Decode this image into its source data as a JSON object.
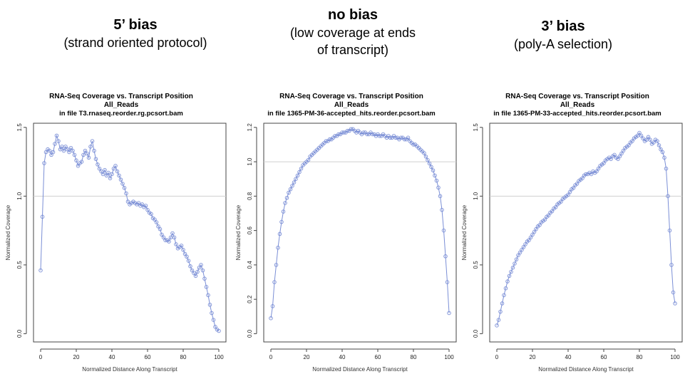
{
  "headings": [
    {
      "title": "5’ bias",
      "subtitle": "(strand oriented protocol)"
    },
    {
      "title": "no bias",
      "subtitle": "(low coverage at ends\nof  transcript)"
    },
    {
      "title": "3’ bias",
      "subtitle": "(poly-A selection)"
    }
  ],
  "chart_data": [
    {
      "type": "line",
      "title": "RNA-Seq Coverage vs. Transcript Position",
      "subtitle": "All_Reads",
      "file_label": "in file T3.rnaseq.reorder.rg.pcsort.bam",
      "xlabel": "Normalized Distance Along Transcript",
      "ylabel": "Normalized Coverage",
      "xlim": [
        0,
        100
      ],
      "ylim": [
        0,
        1.5
      ],
      "xticks": [
        0,
        20,
        40,
        60,
        80,
        100
      ],
      "yticks": [
        0.0,
        0.5,
        1.0,
        1.5
      ],
      "reference_line": 1.0,
      "marker": "circle",
      "color": "#7b8fd6",
      "series": [
        {
          "x": [
            0,
            1,
            2,
            3,
            4,
            5,
            6,
            7,
            8,
            9,
            10,
            11,
            12,
            13,
            14,
            15,
            16,
            17,
            18,
            19,
            20,
            21,
            22,
            23,
            24,
            25,
            26,
            27,
            28,
            29,
            30,
            31,
            32,
            33,
            34,
            35,
            36,
            37,
            38,
            39,
            40,
            41,
            42,
            43,
            44,
            45,
            46,
            47,
            48,
            49,
            50,
            51,
            52,
            53,
            54,
            55,
            56,
            57,
            58,
            59,
            60,
            61,
            62,
            63,
            64,
            65,
            66,
            67,
            68,
            69,
            70,
            71,
            72,
            73,
            74,
            75,
            76,
            77,
            78,
            79,
            80,
            81,
            82,
            83,
            84,
            85,
            86,
            87,
            88,
            89,
            90,
            91,
            92,
            93,
            94,
            95,
            96,
            97,
            98,
            99,
            100
          ],
          "y": [
            0.46,
            0.85,
            1.24,
            1.32,
            1.34,
            1.33,
            1.3,
            1.32,
            1.38,
            1.44,
            1.4,
            1.34,
            1.36,
            1.33,
            1.36,
            1.34,
            1.32,
            1.35,
            1.33,
            1.3,
            1.26,
            1.22,
            1.24,
            1.25,
            1.3,
            1.33,
            1.31,
            1.28,
            1.36,
            1.4,
            1.33,
            1.27,
            1.23,
            1.2,
            1.18,
            1.16,
            1.19,
            1.15,
            1.17,
            1.13,
            1.16,
            1.2,
            1.22,
            1.18,
            1.15,
            1.12,
            1.09,
            1.06,
            1.02,
            0.96,
            0.94,
            0.95,
            0.96,
            0.95,
            0.94,
            0.95,
            0.93,
            0.94,
            0.92,
            0.93,
            0.9,
            0.88,
            0.87,
            0.84,
            0.83,
            0.81,
            0.78,
            0.76,
            0.72,
            0.7,
            0.68,
            0.68,
            0.67,
            0.7,
            0.73,
            0.7,
            0.65,
            0.62,
            0.63,
            0.64,
            0.61,
            0.58,
            0.56,
            0.53,
            0.49,
            0.46,
            0.44,
            0.42,
            0.45,
            0.48,
            0.5,
            0.46,
            0.4,
            0.34,
            0.28,
            0.21,
            0.15,
            0.1,
            0.05,
            0.03,
            0.02
          ]
        }
      ]
    },
    {
      "type": "line",
      "title": "RNA-Seq Coverage vs. Transcript Position",
      "subtitle": "All_Reads",
      "file_label": "in file 1365-PM-36-accepted_hits.reorder.pcsort.bam",
      "xlabel": "Normalized Distance Along Transcript",
      "ylabel": "Normalized Coverage",
      "xlim": [
        0,
        100
      ],
      "ylim": [
        0,
        1.2
      ],
      "xticks": [
        0,
        20,
        40,
        60,
        80,
        100
      ],
      "yticks": [
        0.0,
        0.2,
        0.4,
        0.6,
        0.8,
        1.0,
        1.2
      ],
      "reference_line": 1.0,
      "marker": "circle",
      "color": "#7b8fd6",
      "series": [
        {
          "x": [
            0,
            1,
            2,
            3,
            4,
            5,
            6,
            7,
            8,
            9,
            10,
            11,
            12,
            13,
            14,
            15,
            16,
            17,
            18,
            19,
            20,
            21,
            22,
            23,
            24,
            25,
            26,
            27,
            28,
            29,
            30,
            31,
            32,
            33,
            34,
            35,
            36,
            37,
            38,
            39,
            40,
            41,
            42,
            43,
            44,
            45,
            46,
            47,
            48,
            49,
            50,
            51,
            52,
            53,
            54,
            55,
            56,
            57,
            58,
            59,
            60,
            61,
            62,
            63,
            64,
            65,
            66,
            67,
            68,
            69,
            70,
            71,
            72,
            73,
            74,
            75,
            76,
            77,
            78,
            79,
            80,
            81,
            82,
            83,
            84,
            85,
            86,
            87,
            88,
            89,
            90,
            91,
            92,
            93,
            94,
            95,
            96,
            97,
            98,
            99,
            100
          ],
          "y": [
            0.09,
            0.16,
            0.3,
            0.4,
            0.5,
            0.58,
            0.65,
            0.71,
            0.76,
            0.79,
            0.82,
            0.84,
            0.86,
            0.88,
            0.9,
            0.92,
            0.94,
            0.96,
            0.98,
            0.99,
            1.0,
            1.01,
            1.03,
            1.04,
            1.05,
            1.06,
            1.07,
            1.08,
            1.09,
            1.1,
            1.11,
            1.12,
            1.12,
            1.13,
            1.13,
            1.14,
            1.15,
            1.15,
            1.16,
            1.16,
            1.17,
            1.17,
            1.17,
            1.18,
            1.18,
            1.19,
            1.19,
            1.18,
            1.17,
            1.18,
            1.17,
            1.16,
            1.17,
            1.17,
            1.16,
            1.16,
            1.17,
            1.16,
            1.16,
            1.15,
            1.16,
            1.15,
            1.15,
            1.16,
            1.15,
            1.14,
            1.15,
            1.14,
            1.14,
            1.15,
            1.14,
            1.14,
            1.13,
            1.14,
            1.14,
            1.13,
            1.13,
            1.14,
            1.12,
            1.11,
            1.1,
            1.1,
            1.09,
            1.08,
            1.07,
            1.06,
            1.05,
            1.03,
            1.01,
            0.99,
            0.97,
            0.95,
            0.92,
            0.89,
            0.85,
            0.8,
            0.72,
            0.6,
            0.45,
            0.3,
            0.12
          ]
        }
      ]
    },
    {
      "type": "line",
      "title": "RNA-Seq Coverage vs. Transcript Position",
      "subtitle": "All_Reads",
      "file_label": "in file 1365-PM-33-accepted_hits.reorder.pcsort.bam",
      "xlabel": "Normalized Distance Along Transcript",
      "ylabel": "Normalized Coverage",
      "xlim": [
        0,
        100
      ],
      "ylim": [
        0,
        1.5
      ],
      "xticks": [
        0,
        20,
        40,
        60,
        80,
        100
      ],
      "yticks": [
        0.0,
        0.5,
        1.0,
        1.5
      ],
      "reference_line": 1.0,
      "marker": "circle",
      "color": "#7b8fd6",
      "series": [
        {
          "x": [
            0,
            1,
            2,
            3,
            4,
            5,
            6,
            7,
            8,
            9,
            10,
            11,
            12,
            13,
            14,
            15,
            16,
            17,
            18,
            19,
            20,
            21,
            22,
            23,
            24,
            25,
            26,
            27,
            28,
            29,
            30,
            31,
            32,
            33,
            34,
            35,
            36,
            37,
            38,
            39,
            40,
            41,
            42,
            43,
            44,
            45,
            46,
            47,
            48,
            49,
            50,
            51,
            52,
            53,
            54,
            55,
            56,
            57,
            58,
            59,
            60,
            61,
            62,
            63,
            64,
            65,
            66,
            67,
            68,
            69,
            70,
            71,
            72,
            73,
            74,
            75,
            76,
            77,
            78,
            79,
            80,
            81,
            82,
            83,
            84,
            85,
            86,
            87,
            88,
            89,
            90,
            91,
            92,
            93,
            94,
            95,
            96,
            97,
            98,
            99,
            100
          ],
          "y": [
            0.06,
            0.1,
            0.16,
            0.22,
            0.28,
            0.33,
            0.38,
            0.42,
            0.45,
            0.48,
            0.51,
            0.54,
            0.57,
            0.59,
            0.61,
            0.63,
            0.65,
            0.67,
            0.68,
            0.7,
            0.72,
            0.74,
            0.76,
            0.78,
            0.79,
            0.81,
            0.82,
            0.83,
            0.85,
            0.86,
            0.88,
            0.89,
            0.91,
            0.92,
            0.94,
            0.95,
            0.96,
            0.98,
            0.99,
            1.0,
            1.01,
            1.03,
            1.05,
            1.06,
            1.08,
            1.09,
            1.11,
            1.12,
            1.13,
            1.15,
            1.16,
            1.16,
            1.17,
            1.16,
            1.18,
            1.17,
            1.18,
            1.2,
            1.22,
            1.23,
            1.24,
            1.26,
            1.27,
            1.28,
            1.27,
            1.29,
            1.3,
            1.28,
            1.27,
            1.29,
            1.31,
            1.33,
            1.35,
            1.36,
            1.37,
            1.39,
            1.4,
            1.42,
            1.43,
            1.44,
            1.46,
            1.44,
            1.42,
            1.4,
            1.41,
            1.43,
            1.41,
            1.38,
            1.39,
            1.41,
            1.4,
            1.37,
            1.34,
            1.32,
            1.28,
            1.2,
            1.0,
            0.75,
            0.5,
            0.3,
            0.22
          ]
        }
      ]
    }
  ]
}
